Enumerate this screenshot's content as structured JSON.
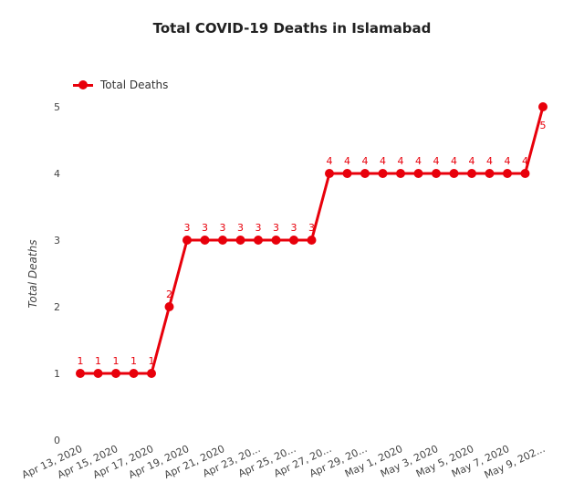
{
  "chart_data": {
    "type": "line",
    "title": "Total COVID-19 Deaths in Islamabad",
    "xlabel": "",
    "ylabel": "Total Deaths",
    "ylim": [
      0,
      5
    ],
    "yticks": [
      0,
      1,
      2,
      3,
      4,
      5
    ],
    "grid": false,
    "legend_position": "top-left",
    "color": "#e8000b",
    "x": [
      "Apr 13, 2020",
      "Apr 14, 2020",
      "Apr 15, 2020",
      "Apr 16, 2020",
      "Apr 17, 2020",
      "Apr 18, 2020",
      "Apr 19, 2020",
      "Apr 20, 2020",
      "Apr 21, 2020",
      "Apr 22, 2020",
      "Apr 23, 2020",
      "Apr 24, 2020",
      "Apr 25, 2020",
      "Apr 26, 2020",
      "Apr 27, 2020",
      "Apr 28, 2020",
      "Apr 29, 2020",
      "Apr 30, 2020",
      "May 1, 2020",
      "May 2, 2020",
      "May 3, 2020",
      "May 4, 2020",
      "May 5, 2020",
      "May 6, 2020",
      "May 7, 2020",
      "May 8, 2020",
      "May 9, 2020"
    ],
    "xtick_labels": [
      "Apr 13, 2020",
      "Apr 15, 2020",
      "Apr 17, 2020",
      "Apr 19, 2020",
      "Apr 21, 2020",
      "Apr 23, 20...",
      "Apr 25, 20...",
      "Apr 27, 20...",
      "Apr 29, 20...",
      "May 1, 2020",
      "May 3, 2020",
      "May 5, 2020",
      "May 7, 2020",
      "May 9, 202..."
    ],
    "series": [
      {
        "name": "Total Deaths",
        "values": [
          1,
          1,
          1,
          1,
          1,
          2,
          3,
          3,
          3,
          3,
          3,
          3,
          3,
          3,
          4,
          4,
          4,
          4,
          4,
          4,
          4,
          4,
          4,
          4,
          4,
          4,
          5
        ]
      }
    ]
  }
}
